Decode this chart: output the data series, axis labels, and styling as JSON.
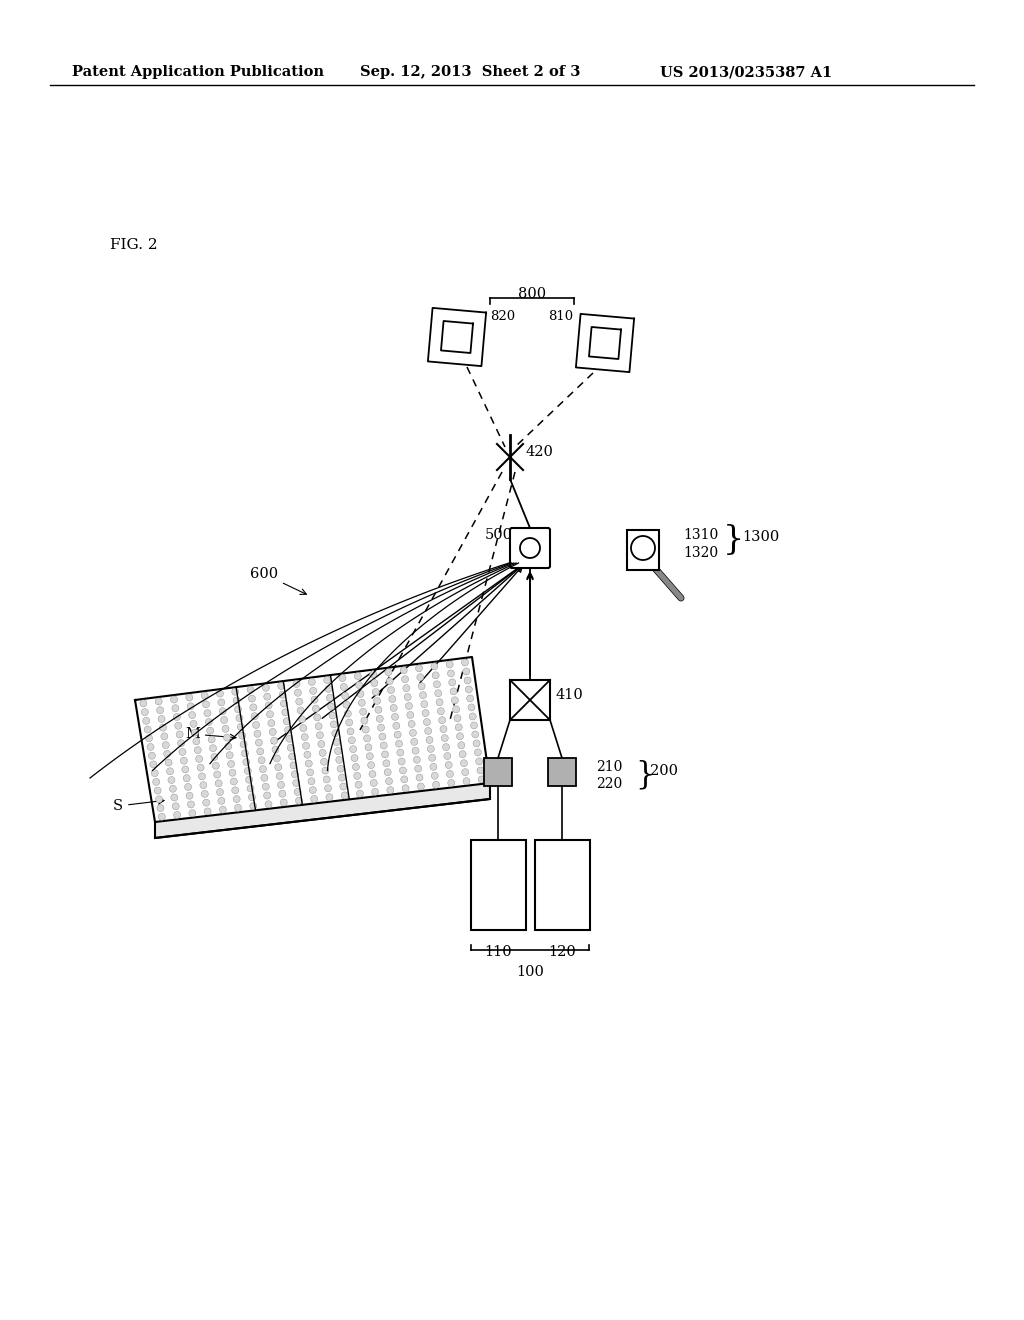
{
  "background_color": "#ffffff",
  "header_left": "Patent Application Publication",
  "header_mid": "Sep. 12, 2013  Sheet 2 of 3",
  "header_right": "US 2013/0235387 A1",
  "fig_label": "FIG. 2"
}
